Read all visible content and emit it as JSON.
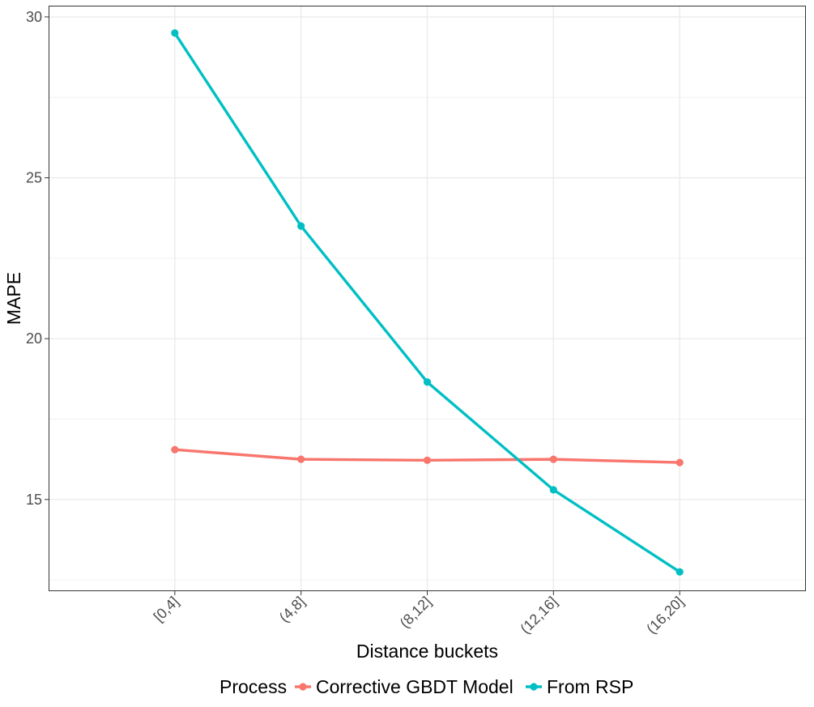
{
  "chart_data": {
    "type": "line",
    "categories": [
      "[0,4]",
      "(4,8]",
      "(8,12]",
      "(12,16]",
      "(16,20]"
    ],
    "series": [
      {
        "name": "Corrective GBDT Model",
        "color": "#F8766D",
        "values": [
          16.55,
          16.25,
          16.22,
          16.25,
          16.15
        ]
      },
      {
        "name": "From RSP",
        "color": "#00BFC4",
        "values": [
          29.5,
          23.5,
          18.65,
          15.3,
          12.75
        ]
      }
    ],
    "title": "",
    "xlabel": "Distance buckets",
    "ylabel": "MAPE",
    "ylim": [
      12.15,
      30.35
    ],
    "yticks": [
      15,
      20,
      25,
      30
    ],
    "grid": true,
    "legend": {
      "title": "Process",
      "position": "bottom"
    }
  }
}
